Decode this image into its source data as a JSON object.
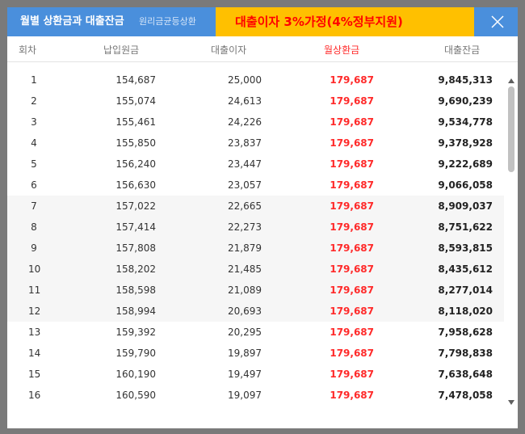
{
  "titlebar": {
    "title": "월별 상환금과 대출잔금",
    "subtitle": "원리금균등상환",
    "banner": "대출이자 3%가정(4%정부지원)"
  },
  "table": {
    "headers": [
      "회차",
      "납입원금",
      "대출이자",
      "월상환금",
      "대출잔금"
    ],
    "rows": [
      {
        "no": "1",
        "principal": "154,687",
        "interest": "25,000",
        "payment": "179,687",
        "balance": "9,845,313"
      },
      {
        "no": "2",
        "principal": "155,074",
        "interest": "24,613",
        "payment": "179,687",
        "balance": "9,690,239"
      },
      {
        "no": "3",
        "principal": "155,461",
        "interest": "24,226",
        "payment": "179,687",
        "balance": "9,534,778"
      },
      {
        "no": "4",
        "principal": "155,850",
        "interest": "23,837",
        "payment": "179,687",
        "balance": "9,378,928"
      },
      {
        "no": "5",
        "principal": "156,240",
        "interest": "23,447",
        "payment": "179,687",
        "balance": "9,222,689"
      },
      {
        "no": "6",
        "principal": "156,630",
        "interest": "23,057",
        "payment": "179,687",
        "balance": "9,066,058"
      },
      {
        "no": "7",
        "principal": "157,022",
        "interest": "22,665",
        "payment": "179,687",
        "balance": "8,909,037"
      },
      {
        "no": "8",
        "principal": "157,414",
        "interest": "22,273",
        "payment": "179,687",
        "balance": "8,751,622"
      },
      {
        "no": "9",
        "principal": "157,808",
        "interest": "21,879",
        "payment": "179,687",
        "balance": "8,593,815"
      },
      {
        "no": "10",
        "principal": "158,202",
        "interest": "21,485",
        "payment": "179,687",
        "balance": "8,435,612"
      },
      {
        "no": "11",
        "principal": "158,598",
        "interest": "21,089",
        "payment": "179,687",
        "balance": "8,277,014"
      },
      {
        "no": "12",
        "principal": "158,994",
        "interest": "20,693",
        "payment": "179,687",
        "balance": "8,118,020"
      },
      {
        "no": "13",
        "principal": "159,392",
        "interest": "20,295",
        "payment": "179,687",
        "balance": "7,958,628"
      },
      {
        "no": "14",
        "principal": "159,790",
        "interest": "19,897",
        "payment": "179,687",
        "balance": "7,798,838"
      },
      {
        "no": "15",
        "principal": "160,190",
        "interest": "19,497",
        "payment": "179,687",
        "balance": "7,638,648"
      },
      {
        "no": "16",
        "principal": "160,590",
        "interest": "19,097",
        "payment": "179,687",
        "balance": "7,478,058"
      }
    ]
  },
  "colors": {
    "titlebar": "#4a8fdc",
    "banner_bg": "#ffc000",
    "banner_text": "#ff0000",
    "payment_text": "#ff2a2a",
    "shaded_row": "#f6f6f6"
  },
  "icons": {
    "close": "close-icon",
    "scroll_up": "scroll-up-arrow-icon",
    "scroll_down": "scroll-down-arrow-icon"
  }
}
